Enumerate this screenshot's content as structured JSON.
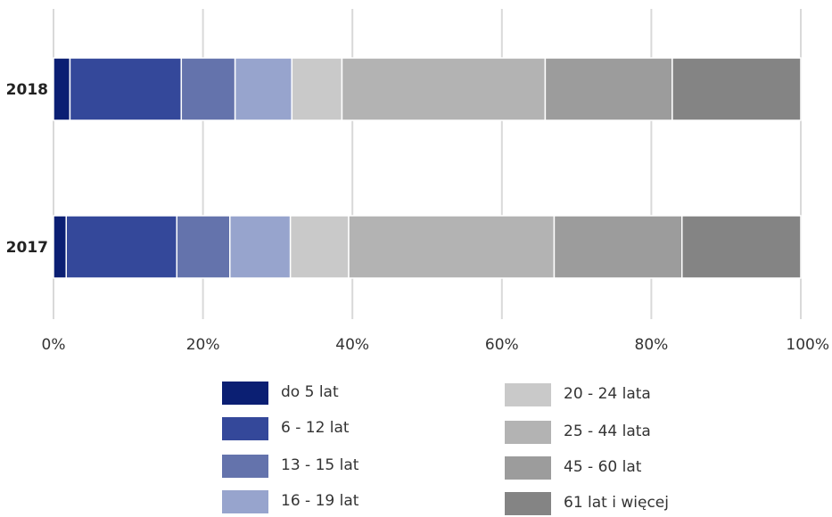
{
  "chart_data": {
    "type": "bar",
    "orientation": "horizontal",
    "stacked": true,
    "normalized": true,
    "categories": [
      "2018",
      "2017"
    ],
    "xlim": [
      0,
      100
    ],
    "x_ticks": [
      "0%",
      "20%",
      "40%",
      "60%",
      "80%",
      "100%"
    ],
    "grid": true,
    "legend_position": "bottom",
    "series": [
      {
        "name": "do 5 lat",
        "color": "#0b1f73",
        "values": [
          2.2,
          1.7
        ]
      },
      {
        "name": "6 - 12 lat",
        "color": "#34489a",
        "values": [
          14.9,
          14.8
        ]
      },
      {
        "name": "13 - 15 lat",
        "color": "#6473ac",
        "values": [
          7.2,
          7.1
        ]
      },
      {
        "name": "16 - 19 lat",
        "color": "#97a4cd",
        "values": [
          7.6,
          8.1
        ]
      },
      {
        "name": "20 - 24 lata",
        "color": "#c9c9c9",
        "values": [
          6.7,
          7.8
        ]
      },
      {
        "name": "25 - 44 lata",
        "color": "#b3b3b3",
        "values": [
          27.2,
          27.5
        ]
      },
      {
        "name": "45 - 60 lat",
        "color": "#9c9c9c",
        "values": [
          17.0,
          17.1
        ]
      },
      {
        "name": "61 lat i więcej",
        "color": "#848484",
        "values": [
          17.2,
          15.9
        ]
      }
    ]
  }
}
